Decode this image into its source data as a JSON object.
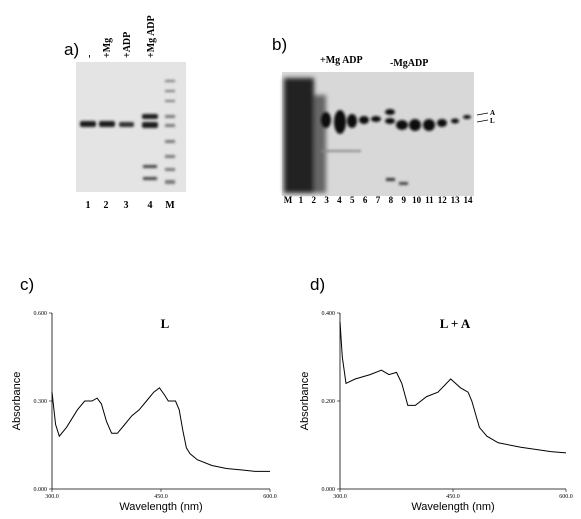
{
  "figure": {
    "a": {
      "label": "a)",
      "headers": [
        "-",
        "+Mg",
        "+ADP",
        "+Mg ADP"
      ],
      "lanes": [
        "1",
        "2",
        "3",
        "4",
        "M"
      ]
    },
    "b": {
      "label": "b)",
      "groups": [
        "+Mg ADP",
        "-MgADP"
      ],
      "lanes": [
        "M",
        "1",
        "2",
        "3",
        "4",
        "5",
        "6",
        "7",
        "8",
        "9",
        "10",
        "11",
        "12",
        "13",
        "14"
      ],
      "markers": [
        "A",
        "L"
      ]
    }
  },
  "chart_data": [
    {
      "type": "line",
      "panel": "c)",
      "title": "L",
      "xlabel": "Wavelength (nm)",
      "ylabel": "Absorbance",
      "color": "#000000",
      "xlim": [
        300,
        600
      ],
      "xticks": [
        {
          "value": 300,
          "label": "300.0"
        },
        {
          "value": 450,
          "label": "450.0"
        },
        {
          "value": 600,
          "label": "600.0"
        }
      ],
      "ylim": [
        0,
        0.6
      ],
      "yticks": [
        {
          "value": 0,
          "label": "0.000"
        },
        {
          "value": 0.3,
          "label": "0.300"
        },
        {
          "value": 0.6,
          "label": "0.600"
        }
      ],
      "x": [
        300,
        305,
        310,
        320,
        335,
        345,
        355,
        362,
        368,
        375,
        382,
        390,
        400,
        410,
        420,
        430,
        440,
        448,
        455,
        460,
        470,
        475,
        480,
        485,
        490,
        500,
        520,
        540,
        560,
        580,
        600
      ],
      "values": [
        0.33,
        0.22,
        0.18,
        0.21,
        0.27,
        0.3,
        0.3,
        0.31,
        0.29,
        0.23,
        0.19,
        0.19,
        0.22,
        0.25,
        0.27,
        0.3,
        0.33,
        0.345,
        0.32,
        0.3,
        0.3,
        0.27,
        0.2,
        0.14,
        0.12,
        0.1,
        0.08,
        0.07,
        0.065,
        0.06,
        0.06
      ]
    },
    {
      "type": "line",
      "panel": "d)",
      "title": "L + A",
      "xlabel": "Wavelength (nm)",
      "ylabel": "Absorbance",
      "color": "#000000",
      "xlim": [
        300,
        600
      ],
      "xticks": [
        {
          "value": 300,
          "label": "300.0"
        },
        {
          "value": 450,
          "label": "450.0"
        },
        {
          "value": 600,
          "label": "600.0"
        }
      ],
      "ylim": [
        0,
        0.4
      ],
      "yticks": [
        {
          "value": 0,
          "label": "0.000"
        },
        {
          "value": 0.2,
          "label": "0.200"
        },
        {
          "value": 0.4,
          "label": "0.400"
        }
      ],
      "x": [
        300,
        303,
        308,
        320,
        340,
        355,
        365,
        375,
        382,
        390,
        400,
        415,
        430,
        447,
        460,
        470,
        475,
        485,
        495,
        510,
        540,
        580,
        600
      ],
      "values": [
        0.38,
        0.3,
        0.24,
        0.25,
        0.26,
        0.27,
        0.26,
        0.265,
        0.24,
        0.19,
        0.19,
        0.21,
        0.22,
        0.25,
        0.23,
        0.22,
        0.2,
        0.14,
        0.12,
        0.105,
        0.095,
        0.085,
        0.082
      ]
    }
  ]
}
